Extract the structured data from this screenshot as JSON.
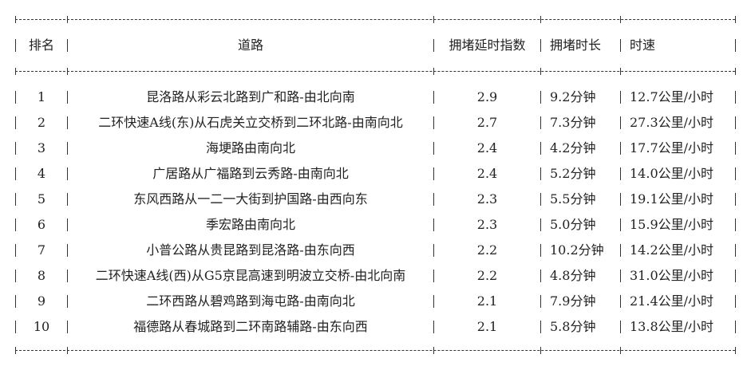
{
  "table": {
    "headers": [
      "排名",
      "道路",
      "拥堵延时指数",
      "拥堵时长",
      "时速"
    ],
    "rows": [
      [
        "1",
        "昆洛路从彩云北路到广和路-由北向南",
        "2.9",
        "9.2分钟",
        "12.7公里/小时"
      ],
      [
        "2",
        "二环快速A线(东)从石虎关立交桥到二环北路-由南向北",
        "2.7",
        "7.3分钟",
        "27.3公里/小时"
      ],
      [
        "3",
        "海埂路由南向北",
        "2.4",
        "4.2分钟",
        "17.7公里/小时"
      ],
      [
        "4",
        "广居路从广福路到云秀路-由南向北",
        "2.4",
        "5.2分钟",
        "14.0公里/小时"
      ],
      [
        "5",
        "东风西路从一二一大街到护国路-由西向东",
        "2.3",
        "5.5分钟",
        "19.1公里/小时"
      ],
      [
        "6",
        "季宏路由南向北",
        "2.3",
        "5.0分钟",
        "15.9公里/小时"
      ],
      [
        "7",
        "小普公路从贵昆路到昆洛路-由东向西",
        "2.2",
        "10.2分钟",
        "14.2公里/小时"
      ],
      [
        "8",
        "二环快速A线(西)从G5京昆高速到明波立交桥-由北向南",
        "2.2",
        "4.8分钟",
        "31.0公里/小时"
      ],
      [
        "9",
        "二环西路从碧鸡路到海屯路-由南向北",
        "2.1",
        "7.9分钟",
        "21.4公里/小时"
      ],
      [
        "10",
        "福德路从春城路到二环南路辅路-由东向西",
        "2.1",
        "5.8分钟",
        "13.8公里/小时"
      ]
    ]
  }
}
